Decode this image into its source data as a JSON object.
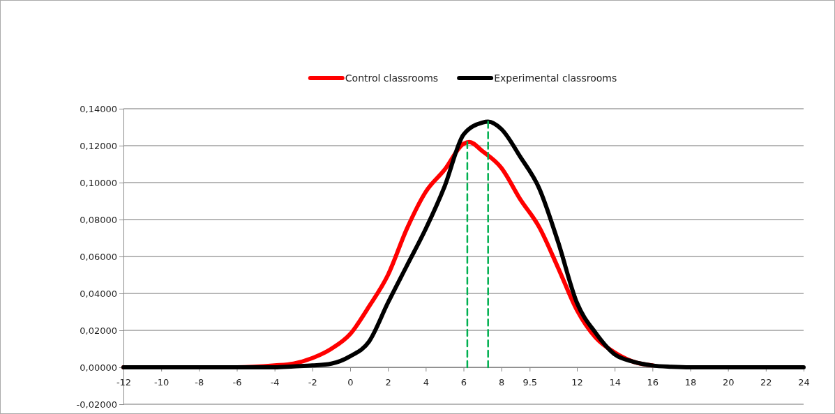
{
  "chart_data": {
    "type": "line",
    "legend": "top",
    "grid": "y",
    "marker": "none",
    "xlim": [
      -12,
      24
    ],
    "ylim": [
      -0.02,
      0.14
    ],
    "xticks": [
      -12,
      -10,
      -8,
      -6,
      -4,
      -2,
      0,
      2,
      4,
      6,
      8,
      {
        "value": 9.5,
        "label": "9.5"
      },
      12,
      14,
      16,
      18,
      20,
      22,
      24
    ],
    "yticks": [
      {
        "value": -0.02,
        "label": "-0,02000"
      },
      {
        "value": 0,
        "label": "0,00000"
      },
      {
        "value": 0.02,
        "label": "0,02000"
      },
      {
        "value": 0.04,
        "label": "0,04000"
      },
      {
        "value": 0.06,
        "label": "0,06000"
      },
      {
        "value": 0.08,
        "label": "0,08000"
      },
      {
        "value": 0.1,
        "label": "0,10000"
      },
      {
        "value": 0.12,
        "label": "0,12000"
      },
      {
        "value": 0.14,
        "label": "0,14000"
      }
    ],
    "series": [
      {
        "name": "Control classrooms",
        "color": "#ff0000",
        "line_style": "solid",
        "x": [
          -12,
          -6,
          -4,
          -3,
          -2,
          -1,
          0,
          1,
          2,
          3,
          4,
          5,
          6,
          6.3,
          7,
          8,
          9,
          10,
          11,
          12,
          13,
          14,
          15,
          16
        ],
        "values": [
          0,
          0,
          0.001,
          0.002,
          0.005,
          0.01,
          0.018,
          0.033,
          0.05,
          0.075,
          0.095,
          0.107,
          0.121,
          0.122,
          0.117,
          0.108,
          0.091,
          0.076,
          0.054,
          0.031,
          0.016,
          0.008,
          0.003,
          0.001
        ]
      },
      {
        "name": "Experimental classrooms",
        "color": "#000000",
        "line_style": "solid",
        "x": [
          -12,
          -4,
          -3,
          -2,
          -1,
          0,
          1,
          2,
          3,
          4,
          5,
          6,
          7,
          7.3,
          8,
          9,
          10,
          11,
          12,
          13,
          14,
          15,
          16,
          17,
          18,
          24
        ],
        "values": [
          0,
          0,
          0.0005,
          0.001,
          0.002,
          0.006,
          0.014,
          0.035,
          0.055,
          0.075,
          0.098,
          0.126,
          0.1325,
          0.133,
          0.129,
          0.114,
          0.097,
          0.068,
          0.035,
          0.0185,
          0.007,
          0.003,
          0.001,
          0.0003,
          0,
          0
        ]
      },
      {
        "color": "#00b050",
        "line_style": "dashed",
        "x": [
          6.2,
          6.2
        ],
        "values": [
          0,
          0.122
        ]
      },
      {
        "color": "#00b050",
        "line_style": "dashed",
        "x": [
          7.3,
          7.3
        ],
        "values": [
          0,
          0.133
        ]
      }
    ]
  }
}
